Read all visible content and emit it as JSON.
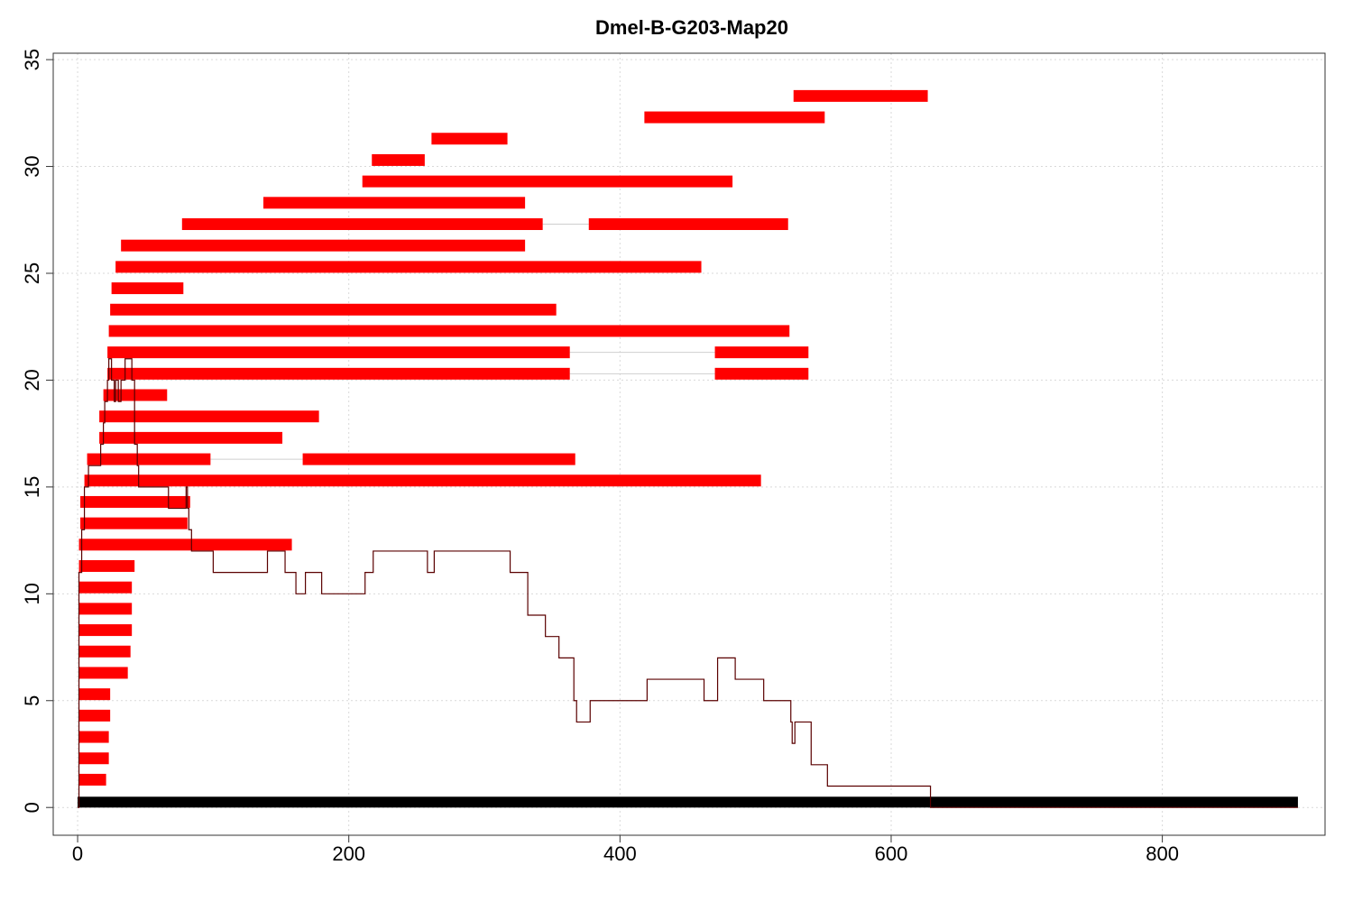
{
  "chart_data": {
    "type": "custom-read-alignment",
    "title": "Dmel-B-G203-Map20",
    "xlabel": "",
    "ylabel": "",
    "xlim": [
      -18,
      920
    ],
    "ylim": [
      -1.3,
      35.3
    ],
    "x_ticks": [
      0,
      200,
      400,
      600,
      800
    ],
    "y_ticks": [
      0,
      5,
      10,
      15,
      20,
      25,
      30,
      35
    ],
    "grid": true,
    "colors": {
      "reads": "#ff0000",
      "reference": "#000000",
      "coverage": "#5a0000",
      "gap": "#cfcfcf",
      "grid": "#d9d9d9"
    },
    "reference": {
      "start": 0,
      "end": 900,
      "y": 0.25
    },
    "reads": [
      {
        "y": 1.3,
        "segments": [
          [
            1,
            21
          ]
        ]
      },
      {
        "y": 2.3,
        "segments": [
          [
            1,
            23
          ]
        ]
      },
      {
        "y": 3.3,
        "segments": [
          [
            1,
            23
          ]
        ]
      },
      {
        "y": 4.3,
        "segments": [
          [
            1,
            24
          ]
        ]
      },
      {
        "y": 5.3,
        "segments": [
          [
            1,
            24
          ]
        ]
      },
      {
        "y": 6.3,
        "segments": [
          [
            1,
            37
          ]
        ]
      },
      {
        "y": 7.3,
        "segments": [
          [
            1,
            39
          ]
        ]
      },
      {
        "y": 8.3,
        "segments": [
          [
            1,
            40
          ]
        ]
      },
      {
        "y": 9.3,
        "segments": [
          [
            1,
            40
          ]
        ]
      },
      {
        "y": 10.3,
        "segments": [
          [
            1,
            40
          ]
        ]
      },
      {
        "y": 11.3,
        "segments": [
          [
            1,
            42
          ]
        ]
      },
      {
        "y": 12.3,
        "segments": [
          [
            1,
            158
          ]
        ]
      },
      {
        "y": 13.3,
        "segments": [
          [
            2,
            81
          ]
        ]
      },
      {
        "y": 14.3,
        "segments": [
          [
            2,
            83
          ]
        ]
      },
      {
        "y": 15.3,
        "segments": [
          [
            5,
            504
          ]
        ]
      },
      {
        "y": 16.3,
        "segments": [
          [
            7,
            98
          ],
          [
            166,
            367
          ]
        ]
      },
      {
        "y": 17.3,
        "segments": [
          [
            16,
            151
          ]
        ]
      },
      {
        "y": 18.3,
        "segments": [
          [
            16,
            178
          ]
        ]
      },
      {
        "y": 19.3,
        "segments": [
          [
            19,
            66
          ]
        ]
      },
      {
        "y": 20.3,
        "segments": [
          [
            22,
            363
          ],
          [
            470,
            539
          ]
        ]
      },
      {
        "y": 21.3,
        "segments": [
          [
            22,
            363
          ],
          [
            470,
            539
          ]
        ]
      },
      {
        "y": 22.3,
        "segments": [
          [
            23,
            525
          ]
        ]
      },
      {
        "y": 23.3,
        "segments": [
          [
            24,
            353
          ]
        ]
      },
      {
        "y": 24.3,
        "segments": [
          [
            25,
            78
          ]
        ]
      },
      {
        "y": 25.3,
        "segments": [
          [
            28,
            460
          ]
        ]
      },
      {
        "y": 26.3,
        "segments": [
          [
            32,
            330
          ]
        ]
      },
      {
        "y": 27.3,
        "segments": [
          [
            77,
            343
          ],
          [
            377,
            524
          ]
        ]
      },
      {
        "y": 28.3,
        "segments": [
          [
            137,
            330
          ]
        ]
      },
      {
        "y": 29.3,
        "segments": [
          [
            210,
            483
          ]
        ]
      },
      {
        "y": 30.3,
        "segments": [
          [
            217,
            256
          ]
        ]
      },
      {
        "y": 31.3,
        "segments": [
          [
            261,
            317
          ]
        ]
      },
      {
        "y": 32.3,
        "segments": [
          [
            418,
            551
          ]
        ]
      },
      {
        "y": 33.3,
        "segments": [
          [
            528,
            627
          ]
        ]
      }
    ],
    "coverage": [
      [
        0,
        0
      ],
      [
        1,
        11
      ],
      [
        3,
        13
      ],
      [
        5,
        15
      ],
      [
        8,
        16
      ],
      [
        16,
        16
      ],
      [
        17,
        17
      ],
      [
        19,
        18
      ],
      [
        20,
        19
      ],
      [
        22,
        20
      ],
      [
        23,
        21
      ],
      [
        25,
        20
      ],
      [
        27,
        19
      ],
      [
        28,
        20
      ],
      [
        30,
        19
      ],
      [
        32,
        20
      ],
      [
        35,
        21
      ],
      [
        37,
        21
      ],
      [
        40,
        20
      ],
      [
        42,
        17
      ],
      [
        44,
        16
      ],
      [
        45,
        15
      ],
      [
        66,
        15
      ],
      [
        67,
        14
      ],
      [
        78,
        14
      ],
      [
        80,
        15
      ],
      [
        81,
        14
      ],
      [
        82,
        13
      ],
      [
        84,
        12
      ],
      [
        98,
        12
      ],
      [
        100,
        11
      ],
      [
        137,
        11
      ],
      [
        140,
        12
      ],
      [
        151,
        12
      ],
      [
        153,
        11
      ],
      [
        158,
        11
      ],
      [
        161,
        10
      ],
      [
        166,
        10
      ],
      [
        168,
        11
      ],
      [
        178,
        11
      ],
      [
        180,
        10
      ],
      [
        210,
        10
      ],
      [
        212,
        11
      ],
      [
        217,
        11
      ],
      [
        218,
        12
      ],
      [
        256,
        12
      ],
      [
        258,
        11
      ],
      [
        261,
        11
      ],
      [
        263,
        12
      ],
      [
        317,
        12
      ],
      [
        319,
        11
      ],
      [
        330,
        11
      ],
      [
        332,
        9
      ],
      [
        343,
        9
      ],
      [
        345,
        8
      ],
      [
        353,
        8
      ],
      [
        355,
        7
      ],
      [
        363,
        7
      ],
      [
        366,
        5
      ],
      [
        368,
        4
      ],
      [
        376,
        4
      ],
      [
        378,
        5
      ],
      [
        418,
        5
      ],
      [
        420,
        6
      ],
      [
        460,
        6
      ],
      [
        462,
        5
      ],
      [
        470,
        5
      ],
      [
        472,
        7
      ],
      [
        483,
        7
      ],
      [
        485,
        6
      ],
      [
        504,
        6
      ],
      [
        506,
        5
      ],
      [
        524,
        5
      ],
      [
        526,
        4
      ],
      [
        527,
        3
      ],
      [
        529,
        4
      ],
      [
        539,
        4
      ],
      [
        541,
        2
      ],
      [
        551,
        2
      ],
      [
        553,
        1
      ],
      [
        627,
        1
      ],
      [
        629,
        0
      ],
      [
        900,
        0
      ]
    ]
  }
}
